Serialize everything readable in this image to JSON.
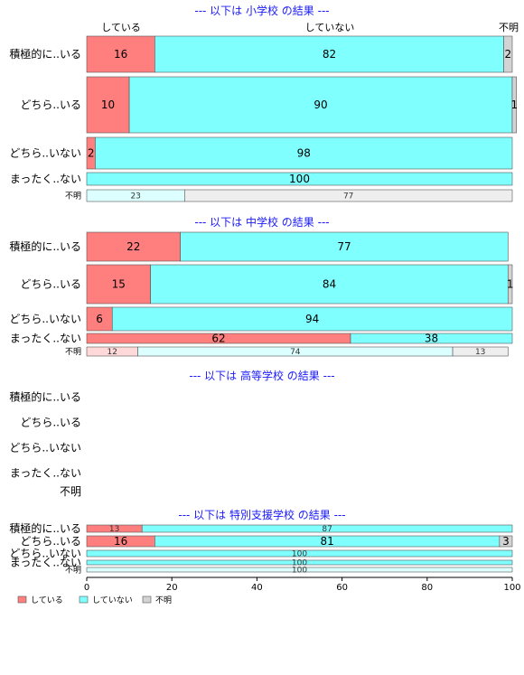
{
  "chart_data": {
    "type": "bar",
    "orientation": "horizontal",
    "stacked": "percent",
    "xlim": [
      0,
      100
    ],
    "xticks": [
      0,
      20,
      40,
      60,
      80,
      100
    ],
    "legend": {
      "position": "bottom-left",
      "items": [
        "している",
        "していない",
        "不明"
      ]
    },
    "colors": {
      "している": "#ff7f7f",
      "していない": "#80ffff",
      "不明": "#d3d3d3"
    },
    "top_labels": [
      "している",
      "していない",
      "不明"
    ],
    "categories": [
      "積極的に..いる",
      "どちら..いる",
      "どちら..いない",
      "まったく..ない",
      "不明"
    ],
    "panels": [
      {
        "title": "--- 以下は 小学校 の結果 ---",
        "rows": [
          {
            "label": "積極的に..いる",
            "values": [
              16,
              82,
              2
            ]
          },
          {
            "label": "どちら..いる",
            "values": [
              10,
              90,
              1
            ]
          },
          {
            "label": "どちら..いない",
            "values": [
              2,
              98,
              0
            ]
          },
          {
            "label": "まったく..ない",
            "values": [
              0,
              100,
              0
            ]
          },
          {
            "label": "不明",
            "values": [
              0,
              23,
              77
            ],
            "faded": true
          }
        ]
      },
      {
        "title": "--- 以下は 中学校 の結果 ---",
        "rows": [
          {
            "label": "積極的に..いる",
            "values": [
              22,
              77,
              0
            ]
          },
          {
            "label": "どちら..いる",
            "values": [
              15,
              84,
              1
            ]
          },
          {
            "label": "どちら..いない",
            "values": [
              6,
              94,
              0
            ]
          },
          {
            "label": "まったく..ない",
            "values": [
              62,
              38,
              0
            ]
          },
          {
            "label": "不明",
            "values": [
              12,
              74,
              13
            ],
            "faded": true
          }
        ]
      },
      {
        "title": "--- 以下は 高等学校 の結果 ---",
        "rows": [
          {
            "label": "積極的に..いる",
            "values": null
          },
          {
            "label": "どちら..いる",
            "values": null
          },
          {
            "label": "どちら..いない",
            "values": null
          },
          {
            "label": "まったく..ない",
            "values": null
          },
          {
            "label": "不明",
            "values": null
          }
        ]
      },
      {
        "title": "--- 以下は 特別支援学校 の結果 ---",
        "rows": [
          {
            "label": "積極的に..いる",
            "values": [
              13,
              87,
              0
            ]
          },
          {
            "label": "どちら..いる",
            "values": [
              16,
              81,
              3
            ]
          },
          {
            "label": "どちら..いない",
            "values": [
              0,
              100,
              0
            ]
          },
          {
            "label": "まったく..ない",
            "values": [
              0,
              100,
              0
            ]
          },
          {
            "label": "不明",
            "values": [
              0,
              100,
              0
            ],
            "faded": true
          }
        ]
      }
    ]
  }
}
